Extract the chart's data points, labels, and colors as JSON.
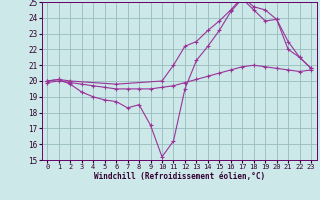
{
  "xlabel": "Windchill (Refroidissement éolien,°C)",
  "bg_color": "#cce8e8",
  "line_color": "#993399",
  "grid_color": "#99bbbb",
  "xlim": [
    -0.5,
    23.5
  ],
  "ylim": [
    15,
    25
  ],
  "xticks": [
    0,
    1,
    2,
    3,
    4,
    5,
    6,
    7,
    8,
    9,
    10,
    11,
    12,
    13,
    14,
    15,
    16,
    17,
    18,
    19,
    20,
    21,
    22,
    23
  ],
  "yticks": [
    15,
    16,
    17,
    18,
    19,
    20,
    21,
    22,
    23,
    24,
    25
  ],
  "line1_x": [
    0,
    1,
    2,
    3,
    4,
    5,
    6,
    7,
    8,
    9,
    10,
    11,
    12,
    13,
    14,
    15,
    16,
    17,
    18,
    19,
    20,
    21,
    22,
    23
  ],
  "line1_y": [
    20.0,
    20.1,
    19.8,
    19.3,
    19.0,
    18.8,
    18.7,
    18.3,
    18.5,
    17.2,
    15.2,
    16.2,
    19.5,
    21.3,
    22.2,
    23.2,
    24.4,
    25.2,
    24.5,
    23.8,
    23.9,
    22.5,
    21.5,
    20.8
  ],
  "line2_x": [
    0,
    1,
    2,
    6,
    10,
    11,
    12,
    13,
    14,
    15,
    16,
    17,
    18,
    19,
    20,
    21,
    22,
    23
  ],
  "line2_y": [
    20.0,
    20.1,
    20.0,
    19.8,
    20.0,
    21.0,
    22.2,
    22.5,
    23.2,
    23.8,
    24.5,
    25.3,
    24.7,
    24.5,
    23.9,
    22.0,
    21.5,
    20.8
  ],
  "line3_x": [
    0,
    1,
    2,
    3,
    4,
    5,
    6,
    7,
    8,
    9,
    10,
    11,
    12,
    13,
    14,
    15,
    16,
    17,
    18,
    19,
    20,
    21,
    22,
    23
  ],
  "line3_y": [
    19.9,
    20.0,
    19.9,
    19.8,
    19.7,
    19.6,
    19.5,
    19.5,
    19.5,
    19.5,
    19.6,
    19.7,
    19.9,
    20.1,
    20.3,
    20.5,
    20.7,
    20.9,
    21.0,
    20.9,
    20.8,
    20.7,
    20.6,
    20.7
  ]
}
